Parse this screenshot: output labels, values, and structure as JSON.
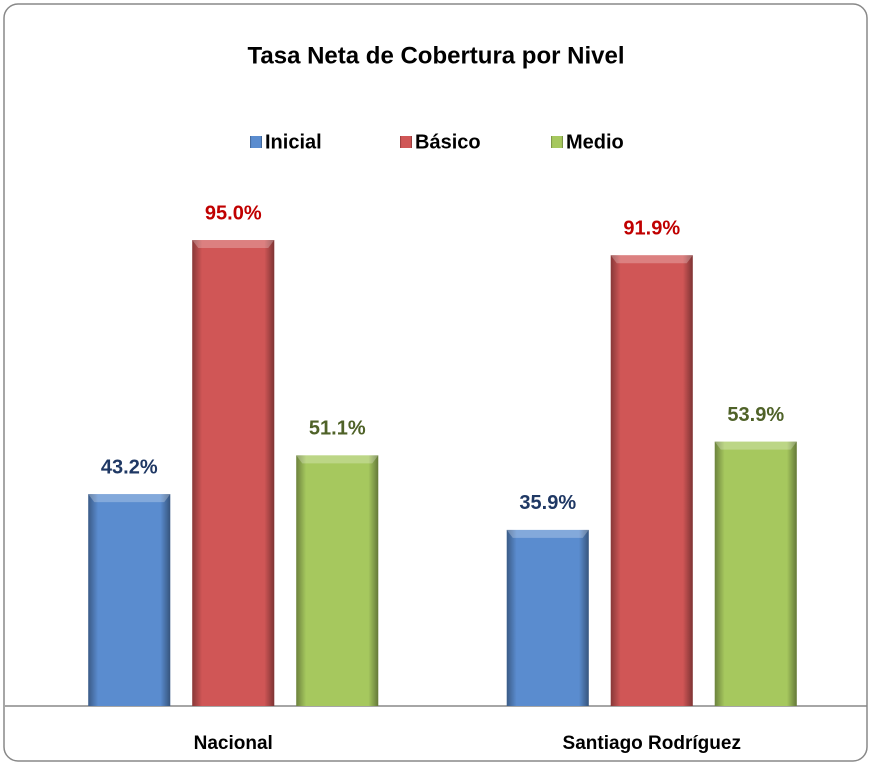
{
  "chart_data": {
    "type": "bar",
    "title": "Tasa Neta de Cobertura por Nivel",
    "categories": [
      "Nacional",
      "Santiago Rodríguez"
    ],
    "series": [
      {
        "name": "Inicial",
        "color": "#5a8ccf",
        "label_color": "#1f3864",
        "values": [
          43.2,
          35.9
        ],
        "value_labels": [
          "43.2%",
          "35.9%"
        ]
      },
      {
        "name": "Básico",
        "color": "#d05656",
        "label_color": "#c00000",
        "values": [
          95.0,
          91.9
        ],
        "value_labels": [
          "95.0%",
          "91.9%"
        ]
      },
      {
        "name": "Medio",
        "color": "#a6c85e",
        "label_color": "#4f6228",
        "values": [
          51.1,
          53.9
        ],
        "value_labels": [
          "51.1%",
          "53.9%"
        ]
      }
    ],
    "ylim": [
      0,
      100
    ],
    "legend": "top"
  }
}
